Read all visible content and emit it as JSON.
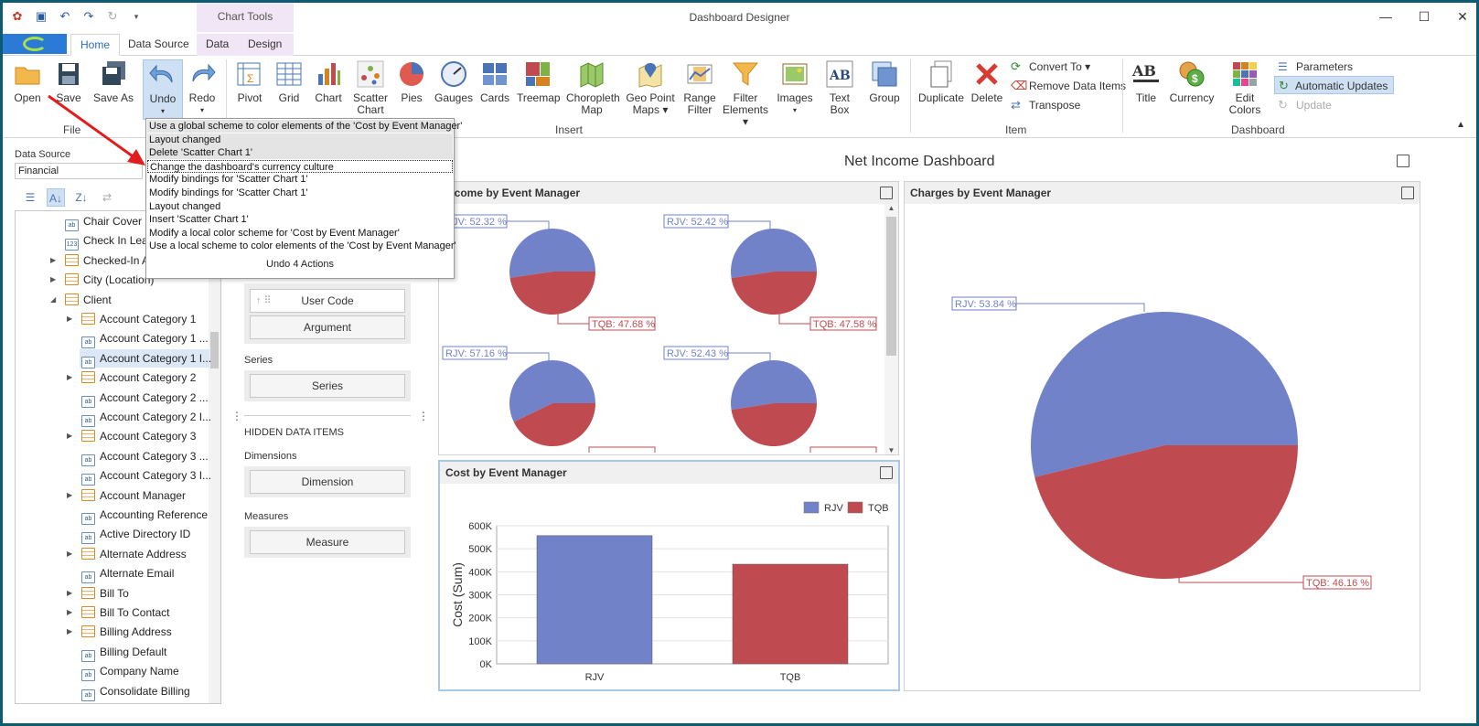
{
  "window": {
    "title": "Dashboard Designer",
    "context_tab_group": "Chart Tools"
  },
  "tabs": {
    "home": "Home",
    "data_source": "Data Source",
    "data": "Data",
    "design": "Design"
  },
  "ribbon": {
    "open": "Open",
    "save": "Save",
    "save_as": "Save As",
    "undo": "Undo",
    "redo": "Redo",
    "pivot": "Pivot",
    "grid": "Grid",
    "chart": "Chart",
    "scatter_chart_l1": "Scatter",
    "scatter_chart_l2": "Chart",
    "pies": "Pies",
    "gauges": "Gauges",
    "cards": "Cards",
    "treemap": "Treemap",
    "choropleth_l1": "Choropleth",
    "choropleth_l2": "Map",
    "geo_l1": "Geo Point",
    "geo_l2": "Maps",
    "range_l1": "Range",
    "range_l2": "Filter",
    "filter_l1": "Filter",
    "filter_l2": "Elements",
    "images": "Images",
    "text_box": "Text Box",
    "group": "Group",
    "duplicate": "Duplicate",
    "delete": "Delete",
    "convert_to": "Convert To",
    "remove_data_items": "Remove Data Items",
    "transpose": "Transpose",
    "title": "Title",
    "currency": "Currency",
    "edit_colors": "Edit Colors",
    "parameters": "Parameters",
    "automatic_updates": "Automatic Updates",
    "update": "Update",
    "groups": {
      "file": "File",
      "insert": "Insert",
      "item": "Item",
      "dashboard": "Dashboard"
    }
  },
  "undo_menu": {
    "items": [
      "Use a global scheme to color elements of the 'Cost by Event Manager'",
      "Layout changed",
      "Delete 'Scatter Chart 1'",
      "Change the dashboard's currency culture",
      "Modify bindings for 'Scatter Chart 1'",
      "Modify bindings for 'Scatter Chart 1'",
      "Layout changed",
      "Insert 'Scatter Chart 1'",
      "Modify a local color scheme for 'Cost by Event Manager'",
      "Use a local scheme to color elements of the 'Cost by Event Manager'"
    ],
    "footer": "Undo 4 Actions"
  },
  "data_source": {
    "label": "Data Source",
    "value": "Financial"
  },
  "tree": [
    {
      "label": "Chair Cover C",
      "icon": "ab",
      "level": 1,
      "exp": ""
    },
    {
      "label": "Check In Lead",
      "icon": "123",
      "level": 1,
      "exp": ""
    },
    {
      "label": "Checked-In A",
      "icon": "tbl",
      "level": 1,
      "exp": "▶"
    },
    {
      "label": "City (Location)",
      "icon": "tbl",
      "level": 1,
      "exp": "▶"
    },
    {
      "label": "Client",
      "icon": "tbl",
      "level": 1,
      "exp": "◢"
    },
    {
      "label": "Account Category 1",
      "icon": "tbl",
      "level": 2,
      "exp": "▶"
    },
    {
      "label": "Account Category 1 ...",
      "icon": "ab",
      "level": 2,
      "exp": ""
    },
    {
      "label": "Account Category 1 I...",
      "icon": "ab",
      "level": 2,
      "exp": ""
    },
    {
      "label": "Account Category 2",
      "icon": "tbl",
      "level": 2,
      "exp": "▶"
    },
    {
      "label": "Account Category 2 ...",
      "icon": "ab",
      "level": 2,
      "exp": ""
    },
    {
      "label": "Account Category 2 I...",
      "icon": "ab",
      "level": 2,
      "exp": ""
    },
    {
      "label": "Account Category 3",
      "icon": "tbl",
      "level": 2,
      "exp": "▶"
    },
    {
      "label": "Account Category 3 ...",
      "icon": "ab",
      "level": 2,
      "exp": ""
    },
    {
      "label": "Account Category 3 I...",
      "icon": "ab",
      "level": 2,
      "exp": ""
    },
    {
      "label": "Account Manager",
      "icon": "tbl",
      "level": 2,
      "exp": "▶"
    },
    {
      "label": "Accounting Reference",
      "icon": "ab",
      "level": 2,
      "exp": ""
    },
    {
      "label": "Active Directory ID",
      "icon": "ab",
      "level": 2,
      "exp": ""
    },
    {
      "label": "Alternate Address",
      "icon": "tbl",
      "level": 2,
      "exp": "▶"
    },
    {
      "label": "Alternate Email",
      "icon": "ab",
      "level": 2,
      "exp": ""
    },
    {
      "label": "Bill To",
      "icon": "tbl",
      "level": 2,
      "exp": "▶"
    },
    {
      "label": "Bill To Contact",
      "icon": "tbl",
      "level": 2,
      "exp": "▶"
    },
    {
      "label": "Billing Address",
      "icon": "tbl",
      "level": 2,
      "exp": "▶"
    },
    {
      "label": "Billing Default",
      "icon": "ab",
      "level": 2,
      "exp": ""
    },
    {
      "label": "Company Name",
      "icon": "ab",
      "level": 2,
      "exp": ""
    },
    {
      "label": "Consolidate Billing",
      "icon": "ab",
      "level": 2,
      "exp": ""
    }
  ],
  "bindings": {
    "user_code": "User Code",
    "argument": "Argument",
    "series_label": "Series",
    "series": "Series",
    "hidden": "HIDDEN DATA ITEMS",
    "dimensions_label": "Dimensions",
    "dimension": "Dimension",
    "measures_label": "Measures",
    "measure": "Measure"
  },
  "dashboard": {
    "title": "Net Income Dashboard",
    "income_panel": "Income by Event Manager",
    "charges_panel": "Charges by Event Manager",
    "cost_panel": "Cost by Event Manager"
  },
  "colors": {
    "rjv": "#7282c8",
    "tqb": "#bf4b50"
  },
  "chart_data": [
    {
      "type": "pie",
      "title": "Income by Event Manager",
      "pies": [
        {
          "slices": [
            {
              "name": "RJV",
              "label": "RJV: 52.32 %",
              "value": 52.32
            },
            {
              "name": "TQB",
              "label": "TQB: 47.68 %",
              "value": 47.68
            }
          ]
        },
        {
          "slices": [
            {
              "name": "RJV",
              "label": "RJV: 52.42 %",
              "value": 52.42
            },
            {
              "name": "TQB",
              "label": "TQB: 47.58 %",
              "value": 47.58
            }
          ]
        },
        {
          "slices": [
            {
              "name": "RJV",
              "label": "RJV: 57.16 %",
              "value": 57.16
            },
            {
              "name": "TQB",
              "label": "",
              "value": 42.84
            }
          ]
        },
        {
          "slices": [
            {
              "name": "RJV",
              "label": "RJV: 52.43 %",
              "value": 52.43
            },
            {
              "name": "TQB",
              "label": "",
              "value": 47.57
            }
          ]
        }
      ]
    },
    {
      "type": "pie",
      "title": "Charges by Event Manager",
      "slices": [
        {
          "name": "RJV",
          "label": "RJV: 53.84 %",
          "value": 53.84
        },
        {
          "name": "TQB",
          "label": "TQB: 46.16 %",
          "value": 46.16
        }
      ]
    },
    {
      "type": "bar",
      "title": "Cost by Event Manager",
      "categories": [
        "RJV",
        "TQB"
      ],
      "values": [
        557000,
        433000
      ],
      "ylabel": "Cost (Sum)",
      "ylim": [
        0,
        600000
      ],
      "yticks": [
        "0K",
        "100K",
        "200K",
        "300K",
        "400K",
        "500K",
        "600K"
      ],
      "legend": [
        "RJV",
        "TQB"
      ],
      "legend_position": "top-right",
      "grid": true
    }
  ]
}
